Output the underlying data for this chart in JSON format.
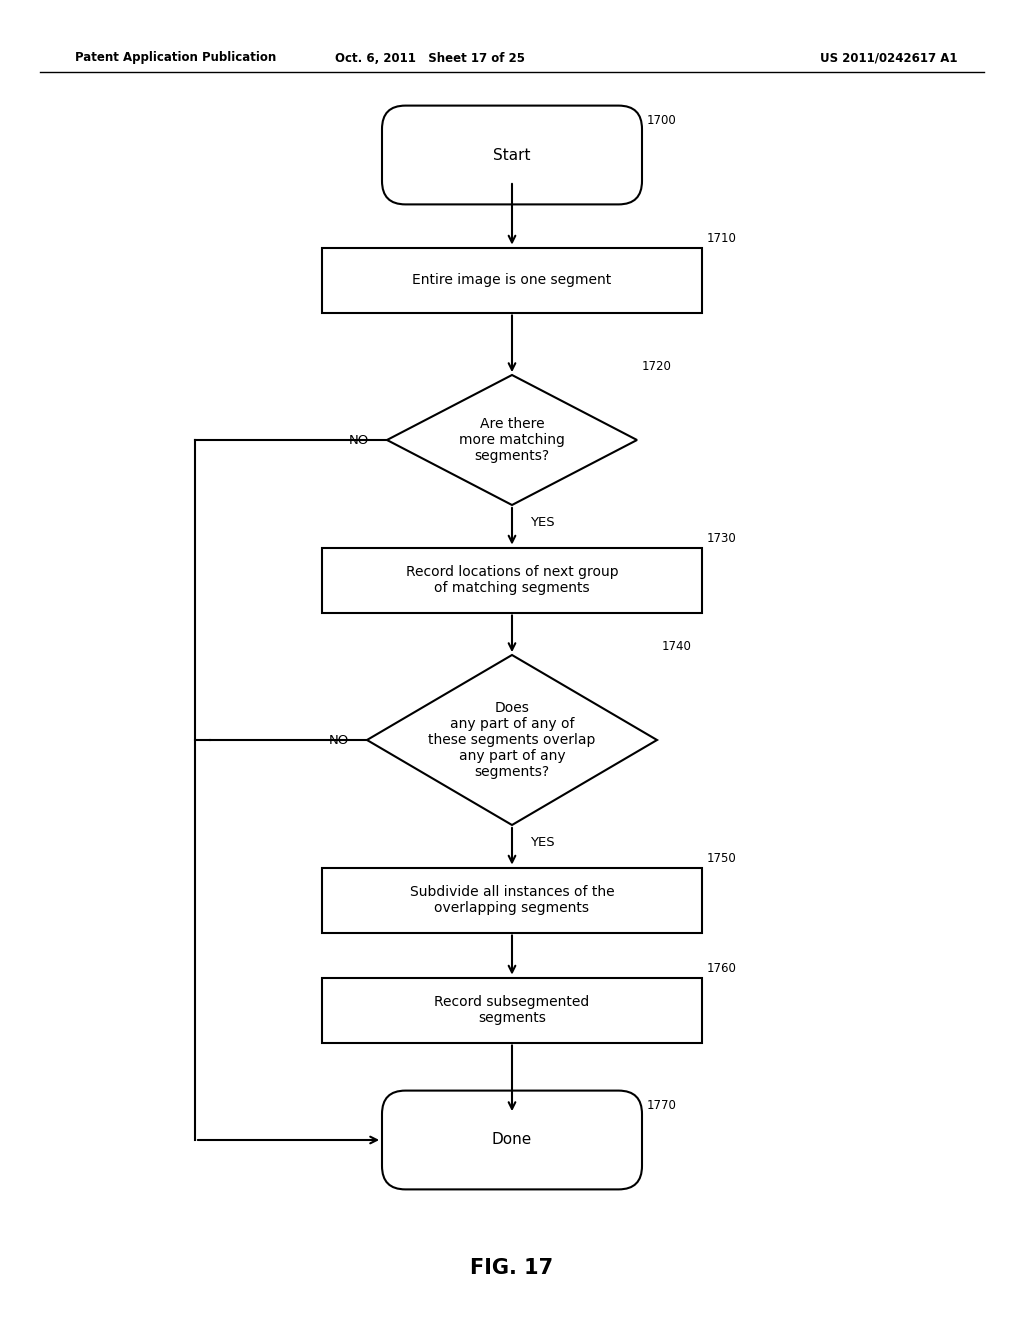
{
  "title": "FIG. 17",
  "header_left": "Patent Application Publication",
  "header_mid": "Oct. 6, 2011   Sheet 17 of 25",
  "header_right": "US 2011/0242617 A1",
  "bg_color": "#ffffff",
  "fig_label": "FIG. 17",
  "nodes": {
    "start": {
      "label": "Start",
      "ref": "1700",
      "type": "stadium"
    },
    "n1710": {
      "label": "Entire image is one segment",
      "ref": "1710",
      "type": "rect"
    },
    "n1720": {
      "label": "Are there\nmore matching\nsegments?",
      "ref": "1720",
      "type": "diamond"
    },
    "n1730": {
      "label": "Record locations of next group\nof matching segments",
      "ref": "1730",
      "type": "rect"
    },
    "n1740": {
      "label": "Does\nany part of any of\nthese segments overlap\nany part of any\nsegments?",
      "ref": "1740",
      "type": "diamond"
    },
    "n1750": {
      "label": "Subdivide all instances of the\noverlapping segments",
      "ref": "1750",
      "type": "rect"
    },
    "n1760": {
      "label": "Record subsegmented\nsegments",
      "ref": "1760",
      "type": "rect"
    },
    "done": {
      "label": "Done",
      "ref": "1770",
      "type": "stadium"
    }
  }
}
